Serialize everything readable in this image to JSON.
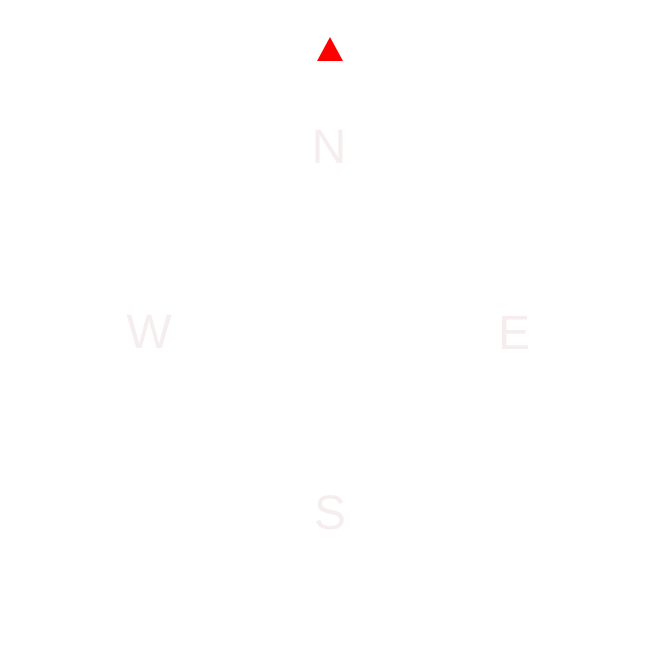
{
  "compass": {
    "north_label": "N",
    "south_label": "S",
    "east_label": "E",
    "west_label": "W",
    "heading_marker_icon": "red-triangle-up-icon",
    "colors": {
      "background": "#ffffff",
      "marker": "#ff0000",
      "labels": "#f6eeee"
    }
  }
}
